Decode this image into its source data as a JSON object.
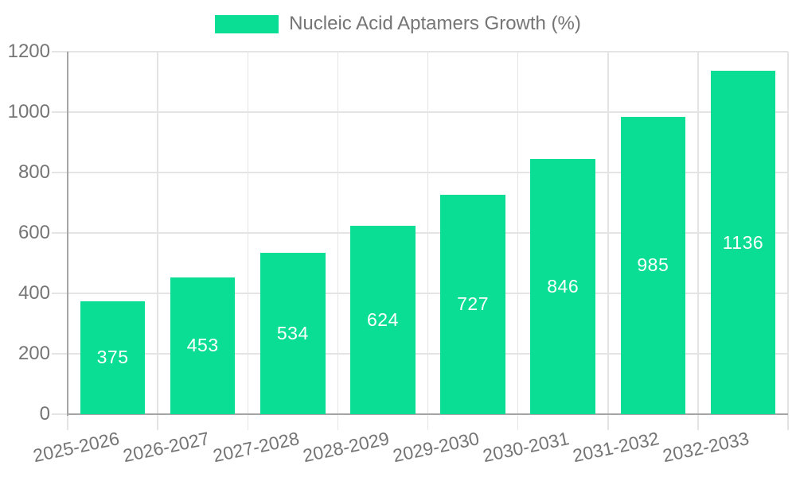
{
  "chart_data": {
    "type": "bar",
    "title": "Nucleic Acid Aptamers Growth (%)",
    "categories": [
      "2025-2026",
      "2026-2027",
      "2027-2028",
      "2028-2029",
      "2029-2030",
      "2030-2031",
      "2031-2032",
      "2032-2033"
    ],
    "values": [
      375,
      453,
      534,
      624,
      727,
      846,
      985,
      1136
    ],
    "yticks": [
      0,
      200,
      400,
      600,
      800,
      1000,
      1200
    ],
    "ylim": [
      0,
      1200
    ],
    "xlabel": "",
    "ylabel": "",
    "grid": true,
    "legend_position": "top-center",
    "colors": {
      "bar": "#0ADE94",
      "bar_value_text": "#FFFFFF",
      "axis_text": "#757575",
      "legend_text": "#757575",
      "grid_line": "#E4E4E4",
      "axis_line": "#A5A5A5",
      "background": "#FFFFFF"
    }
  }
}
